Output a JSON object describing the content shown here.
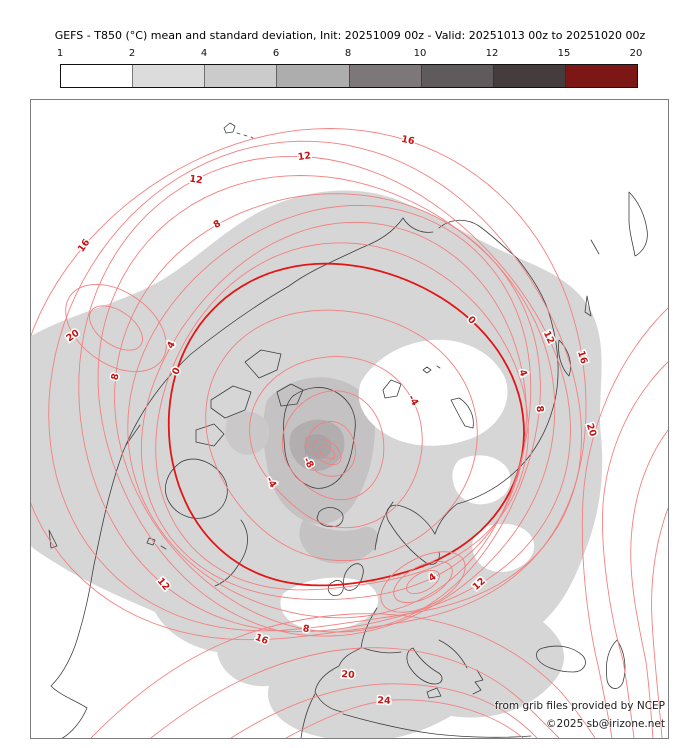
{
  "title": "GEFS - T850 (°C) mean and standard deviation, Init: 20251009 00z - Valid: 20251013 00z to 20251020 00z",
  "colorbar": {
    "ticks": [
      "1",
      "2",
      "4",
      "6",
      "8",
      "10",
      "12",
      "15",
      "20"
    ],
    "colors": [
      "#ffffff",
      "#dcdcdc",
      "#cbcbcb",
      "#adadad",
      "#7d7779",
      "#5f5a5c",
      "#453c3e",
      "#7c1716"
    ]
  },
  "chart_data": {
    "type": "heatmap",
    "title": "GEFS - T850 (°C) mean and standard deviation",
    "init": "20251009 00z",
    "valid_from": "20251013 00z",
    "valid_to": "20251020 00z",
    "projection": "northern hemisphere polar stereographic",
    "shading_variable": "T850 ensemble standard deviation (°C)",
    "shading_bins": [
      1,
      2,
      4,
      6,
      8,
      10,
      12,
      15,
      20
    ],
    "contour_variable": "T850 ensemble mean (°C)",
    "contour_interval": 2,
    "contour_levels": [
      -8,
      -6,
      -4,
      -2,
      0,
      2,
      4,
      6,
      8,
      10,
      12,
      14,
      16,
      18,
      20,
      22,
      24
    ],
    "labeled_contours": [
      -8,
      -4,
      0,
      4,
      8,
      12,
      16,
      20,
      24
    ],
    "thick_contours": [
      0
    ],
    "legend_position": "top",
    "grid": false
  },
  "map": {
    "credits": [
      "from grib files provided by NCEP",
      "©2025 sb@irizone.net"
    ],
    "colors": {
      "contour": "#f28080",
      "contour_thick": "#e31515",
      "contour_label": "#c41414",
      "coastline": "#3f3f3f",
      "shade_light": "#d6d6d6",
      "shade_mid": "#c5c2c3",
      "shade_dark": "#b2aeaf",
      "background": "#ffffff",
      "frame": "#7e7e7e"
    }
  }
}
